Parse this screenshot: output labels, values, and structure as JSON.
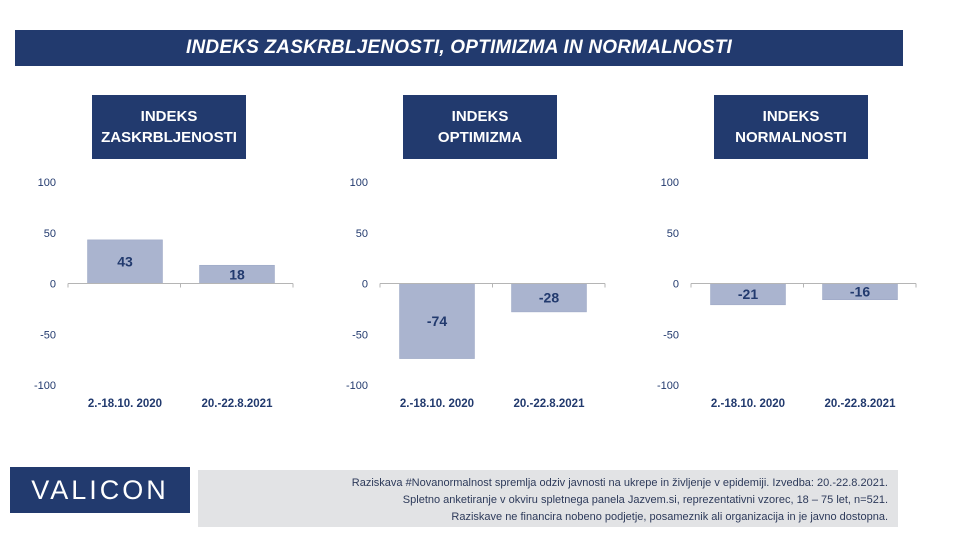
{
  "title": "INDEKS ZASKRBLJENOSTI, OPTIMIZMA IN NORMALNOSTI",
  "logo": "VALICON",
  "footer": [
    "Raziskava #Novanormalnost spremlja odziv javnosti na ukrepe in življenje v epidemiji. Izvedba: 20.-22.8.2021.",
    "Spletno anketiranje v okviru spletnega panela Jazvem.si, reprezentativni vzorec, 18 – 75 let, n=521.",
    "Raziskave ne financira nobeno podjetje, posameznik ali organizacija in je javno dostopna."
  ],
  "colors": {
    "bar": "#aab4cf",
    "header": "#223a6e",
    "text": "#223a6e"
  },
  "chart_data": [
    {
      "type": "bar",
      "title_lines": [
        "INDEKS",
        "ZASKRBLJENOSTI"
      ],
      "categories": [
        "2.-18.10. 2020",
        "20.-22.8.2021"
      ],
      "values": [
        43,
        18
      ],
      "yticks": [
        "100",
        "50",
        "0",
        "-50",
        "-100"
      ],
      "ylim": [
        -100,
        100
      ]
    },
    {
      "type": "bar",
      "title_lines": [
        "INDEKS",
        "OPTIMIZMA"
      ],
      "categories": [
        "2.-18.10. 2020",
        "20.-22.8.2021"
      ],
      "values": [
        -74,
        -28
      ],
      "yticks": [
        "100",
        "50",
        "0",
        "-50",
        "-100"
      ],
      "ylim": [
        -100,
        100
      ]
    },
    {
      "type": "bar",
      "title_lines": [
        "INDEKS",
        "NORMALNOSTI"
      ],
      "categories": [
        "2.-18.10. 2020",
        "20.-22.8.2021"
      ],
      "values": [
        -21,
        -16
      ],
      "yticks": [
        "100",
        "50",
        "0",
        "-50",
        "-100"
      ],
      "ylim": [
        -100,
        100
      ]
    }
  ]
}
